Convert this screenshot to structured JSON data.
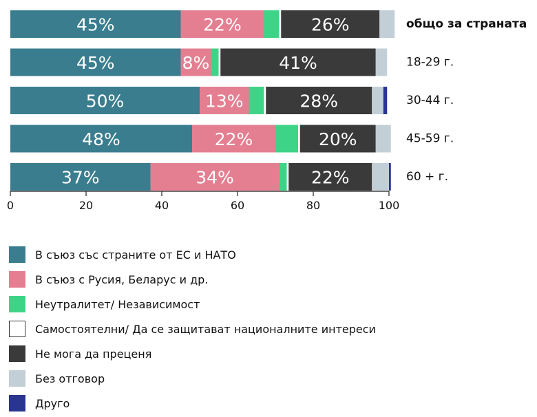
{
  "chart_data": {
    "type": "bar",
    "orientation": "horizontal",
    "stacked": true,
    "categories": [
      "общо за страната",
      "18-29 г.",
      "30-44 г.",
      "45-59 г.",
      "60 + г."
    ],
    "series": [
      {
        "name": "В съюз със страните от ЕС и НАТО",
        "color": "#3a7d8f",
        "values": [
          45,
          45,
          50,
          48,
          37
        ],
        "labels": [
          "45%",
          "45%",
          "50%",
          "48%",
          "37%"
        ]
      },
      {
        "name": "В съюз с Русия, Беларус и др.",
        "color": "#e47f92",
        "values": [
          22,
          8,
          13,
          22,
          34
        ],
        "labels": [
          "22%",
          "8%",
          "13%",
          "22%",
          "34%"
        ]
      },
      {
        "name": "Неутралитет/ Независимост",
        "color": "#3ed488",
        "values": [
          4,
          2,
          4,
          6,
          2
        ],
        "labels": [
          "",
          "",
          "",
          "",
          ""
        ]
      },
      {
        "name": "Самостоятелни/ Да се защитават националните интереси",
        "color": "#ffffff",
        "values": [
          0.5,
          0.5,
          0.5,
          0.5,
          0.5
        ],
        "labels": [
          "",
          "",
          "",
          "",
          ""
        ]
      },
      {
        "name": "Не мога да преценя",
        "color": "#3a3a3a",
        "values": [
          26,
          41,
          28,
          20,
          22
        ],
        "labels": [
          "26%",
          "41%",
          "28%",
          "20%",
          "22%"
        ]
      },
      {
        "name": "Без отговор",
        "color": "#c3cfd6",
        "values": [
          4,
          3,
          3,
          4,
          4.5
        ],
        "labels": [
          "",
          "",
          "",
          "",
          ""
        ]
      },
      {
        "name": "Друго",
        "color": "#2a3590",
        "values": [
          0,
          0,
          1,
          0,
          0.5
        ],
        "labels": [
          "",
          "",
          "",
          "",
          ""
        ]
      }
    ],
    "x": [
      0,
      20,
      40,
      60,
      80,
      100
    ],
    "xticks": [
      "0",
      "20",
      "40",
      "60",
      "80",
      "100"
    ],
    "xlim": [
      0,
      100
    ],
    "title": "",
    "xlabel": "",
    "ylabel": "",
    "legend_position": "bottom"
  }
}
